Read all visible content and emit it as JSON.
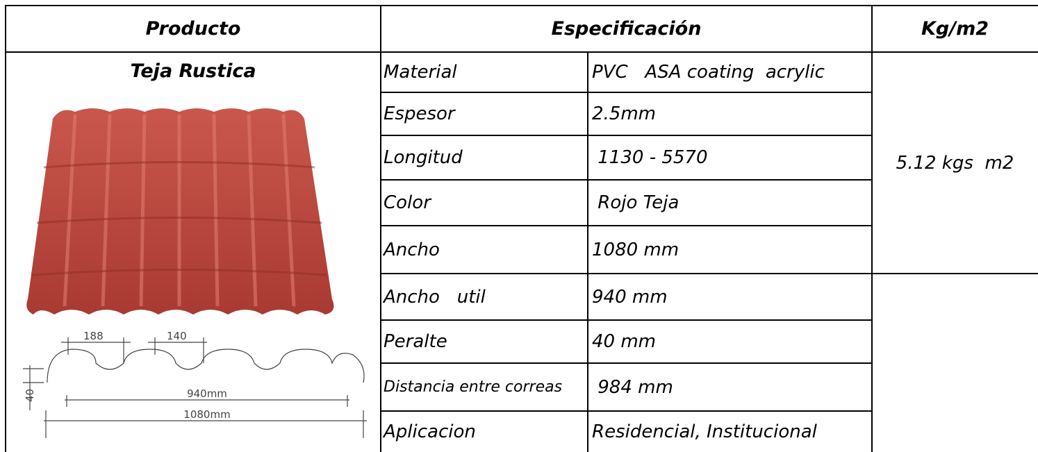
{
  "header": {
    "product": "Producto",
    "specification": "Especificación",
    "weight": "Kg/m2"
  },
  "product": {
    "name": "Teja Rustica",
    "diagram": {
      "pitch": "188",
      "crest": "140",
      "height": "40",
      "useful_width": "940mm",
      "total_width": "1080mm"
    }
  },
  "specs": [
    [
      "Material",
      "PVC   ASA coating  acrylic"
    ],
    [
      "Espesor",
      "2.5mm"
    ],
    [
      "Longitud",
      " 1130 - 5570"
    ],
    [
      "Color",
      " Rojo Teja"
    ],
    [
      "Ancho",
      "1080 mm"
    ],
    [
      "Ancho   util",
      "940 mm"
    ],
    [
      "Peralte",
      "40 mm"
    ],
    [
      "Distancia entre correas",
      " 984 mm"
    ],
    [
      "Aplicacion",
      "Residencial, Institucional"
    ]
  ],
  "weight": "5.12 kgs  m2"
}
